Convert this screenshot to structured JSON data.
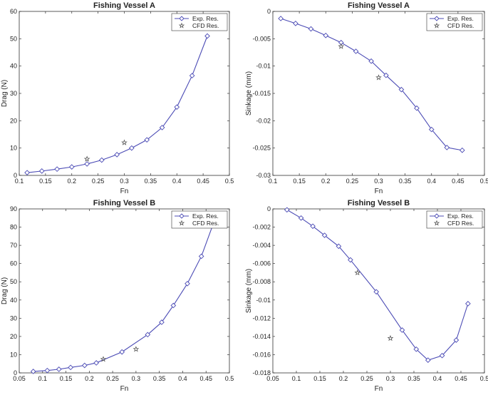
{
  "chart_data": [
    {
      "type": "line",
      "title": "Fishing Vessel A",
      "xlabel": "Fn",
      "ylabel": "Drag (N)",
      "xlim": [
        0.1,
        0.5
      ],
      "ylim": [
        0,
        60
      ],
      "xticks": [
        0.1,
        0.15,
        0.2,
        0.25,
        0.3,
        0.35,
        0.4,
        0.45,
        0.5
      ],
      "yticks": [
        0,
        10,
        20,
        30,
        40,
        50,
        60
      ],
      "xtick_labels": [
        "0.1",
        "0.15",
        "0.2",
        "0.25",
        "0.3",
        "0.35",
        "0.4",
        "0.45",
        "0.5"
      ],
      "ytick_labels": [
        "0",
        "10",
        "20",
        "30",
        "40",
        "50",
        "60"
      ],
      "legend_position": "top-right",
      "series": [
        {
          "name": "Exp. Res.",
          "marker": "diamond",
          "color": "#4b4bb5",
          "x": [
            0.115,
            0.143,
            0.172,
            0.2,
            0.229,
            0.257,
            0.286,
            0.314,
            0.343,
            0.372,
            0.4,
            0.429,
            0.458
          ],
          "y": [
            1.0,
            1.6,
            2.3,
            3.1,
            4.2,
            5.6,
            7.6,
            10.0,
            13.0,
            17.5,
            25.0,
            36.5,
            51.0
          ]
        },
        {
          "name": "CFD Res.",
          "marker": "star",
          "color": "#555555",
          "x": [
            0.229,
            0.3
          ],
          "y": [
            6.0,
            12.0
          ]
        }
      ]
    },
    {
      "type": "line",
      "title": "Fishing Vessel A",
      "xlabel": "Fn",
      "ylabel": "Sinkage (mm)",
      "xlim": [
        0.1,
        0.5
      ],
      "ylim": [
        -0.03,
        0
      ],
      "xticks": [
        0.1,
        0.15,
        0.2,
        0.25,
        0.3,
        0.35,
        0.4,
        0.45,
        0.5
      ],
      "yticks": [
        0,
        -0.005,
        -0.01,
        -0.015,
        -0.02,
        -0.025,
        -0.03
      ],
      "xtick_labels": [
        "0.1",
        "0.15",
        "0.2",
        "0.25",
        "0.3",
        "0.35",
        "0.4",
        "0.45",
        "0.5"
      ],
      "ytick_labels": [
        "0",
        "-0.005",
        "-0.01",
        "-0.015",
        "-0.02",
        "-0.025",
        "-0.03"
      ],
      "legend_position": "top-right",
      "series": [
        {
          "name": "Exp. Res.",
          "marker": "diamond",
          "color": "#4b4bb5",
          "x": [
            0.115,
            0.143,
            0.172,
            0.2,
            0.229,
            0.257,
            0.286,
            0.314,
            0.343,
            0.372,
            0.4,
            0.429,
            0.458
          ],
          "y": [
            -0.0013,
            -0.0022,
            -0.0032,
            -0.0044,
            -0.0057,
            -0.0073,
            -0.0091,
            -0.0117,
            -0.0143,
            -0.0177,
            -0.0216,
            -0.0249,
            -0.0254
          ]
        },
        {
          "name": "CFD Res.",
          "marker": "star",
          "color": "#555555",
          "x": [
            0.229,
            0.3
          ],
          "y": [
            -0.0064,
            -0.0121
          ]
        }
      ]
    },
    {
      "type": "line",
      "title": "Fishing Vessel B",
      "xlabel": "Fn",
      "ylabel": "Drag (N)",
      "xlim": [
        0.05,
        0.5
      ],
      "ylim": [
        0,
        90
      ],
      "xticks": [
        0.05,
        0.1,
        0.15,
        0.2,
        0.25,
        0.3,
        0.35,
        0.4,
        0.45,
        0.5
      ],
      "yticks": [
        0,
        10,
        20,
        30,
        40,
        50,
        60,
        70,
        80,
        90
      ],
      "xtick_labels": [
        "0.05",
        "0.1",
        "0.15",
        "0.2",
        "0.25",
        "0.3",
        "0.35",
        "0.4",
        "0.45",
        "0.5"
      ],
      "ytick_labels": [
        "0",
        "10",
        "20",
        "30",
        "40",
        "50",
        "60",
        "70",
        "80",
        "90"
      ],
      "legend_position": "top-right",
      "series": [
        {
          "name": "Exp. Res.",
          "marker": "diamond",
          "color": "#4b4bb5",
          "x": [
            0.08,
            0.11,
            0.135,
            0.16,
            0.19,
            0.215,
            0.27,
            0.325,
            0.355,
            0.38,
            0.41,
            0.44,
            0.465
          ],
          "y": [
            0.8,
            1.3,
            2.0,
            3.0,
            4.1,
            5.5,
            11.5,
            21.0,
            27.8,
            37.0,
            49.0,
            64.0,
            81.5
          ]
        },
        {
          "name": "CFD Res.",
          "marker": "star",
          "color": "#555555",
          "x": [
            0.23,
            0.3
          ],
          "y": [
            7.5,
            13.0
          ]
        }
      ]
    },
    {
      "type": "line",
      "title": "Fishing Vessel B",
      "xlabel": "Fn",
      "ylabel": "Sinkage (mm)",
      "xlim": [
        0.05,
        0.5
      ],
      "ylim": [
        -0.018,
        0
      ],
      "xticks": [
        0.05,
        0.1,
        0.15,
        0.2,
        0.25,
        0.3,
        0.35,
        0.4,
        0.45,
        0.5
      ],
      "yticks": [
        0,
        -0.002,
        -0.004,
        -0.006,
        -0.008,
        -0.01,
        -0.012,
        -0.014,
        -0.016,
        -0.018
      ],
      "xtick_labels": [
        "0.05",
        "0.1",
        "0.15",
        "0.2",
        "0.25",
        "0.3",
        "0.35",
        "0.4",
        "0.45",
        "0.5"
      ],
      "ytick_labels": [
        "0",
        "-0.002",
        "-0.004",
        "-0.006",
        "-0.008",
        "-0.01",
        "-0.012",
        "-0.014",
        "-0.016",
        "-0.018"
      ],
      "legend_position": "top-right",
      "series": [
        {
          "name": "Exp. Res.",
          "marker": "diamond",
          "color": "#4b4bb5",
          "x": [
            0.08,
            0.11,
            0.135,
            0.16,
            0.19,
            0.215,
            0.27,
            0.325,
            0.355,
            0.38,
            0.41,
            0.44,
            0.465
          ],
          "y": [
            -0.0001,
            -0.001,
            -0.0019,
            -0.0029,
            -0.0041,
            -0.0056,
            -0.0091,
            -0.0133,
            -0.0154,
            -0.0166,
            -0.0161,
            -0.0144,
            -0.0104
          ]
        },
        {
          "name": "CFD Res.",
          "marker": "star",
          "color": "#555555",
          "x": [
            0.23,
            0.3
          ],
          "y": [
            -0.007,
            -0.0142
          ]
        }
      ]
    }
  ]
}
